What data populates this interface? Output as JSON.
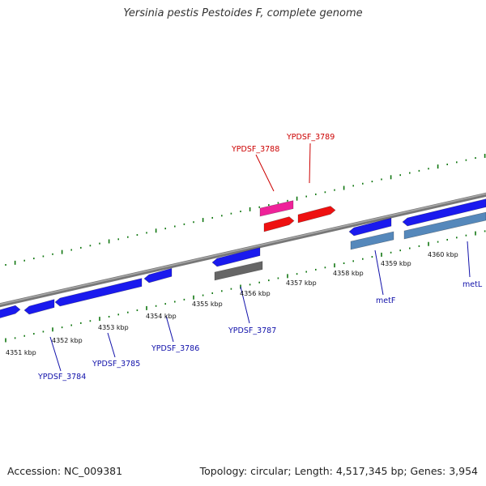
{
  "title": "Yersinia pestis Pestoides F, complete genome",
  "footer": {
    "accession": "Accession: NC_009381",
    "topology": "Topology: circular; Length: 4,517,345 bp; Genes: 3,954"
  },
  "colors": {
    "blue_gene": "#1a1aee",
    "red_gene": "#ee1111",
    "pink_gene": "#ee2299",
    "steel_gene": "#5588bb",
    "gray_gene": "#666666",
    "backbone": "#888888",
    "ticks": "#117711",
    "label_blue": "#1111aa",
    "label_red": "#cc0000"
  },
  "tick_labels": [
    "4351 kbp",
    "4352 kbp",
    "4353 kbp",
    "4354 kbp",
    "4355 kbp",
    "4356 kbp",
    "4357 kbp",
    "4358 kbp",
    "4359 kbp",
    "4360 kbp"
  ],
  "gene_labels": {
    "YPDSF_3784": "YPDSF_3784",
    "YPDSF_3785": "YPDSF_3785",
    "YPDSF_3786": "YPDSF_3786",
    "YPDSF_3787": "YPDSF_3787",
    "YPDSF_3788": "YPDSF_3788",
    "YPDSF_3789": "YPDSF_3789",
    "metF": "metF",
    "metL": "metL"
  }
}
